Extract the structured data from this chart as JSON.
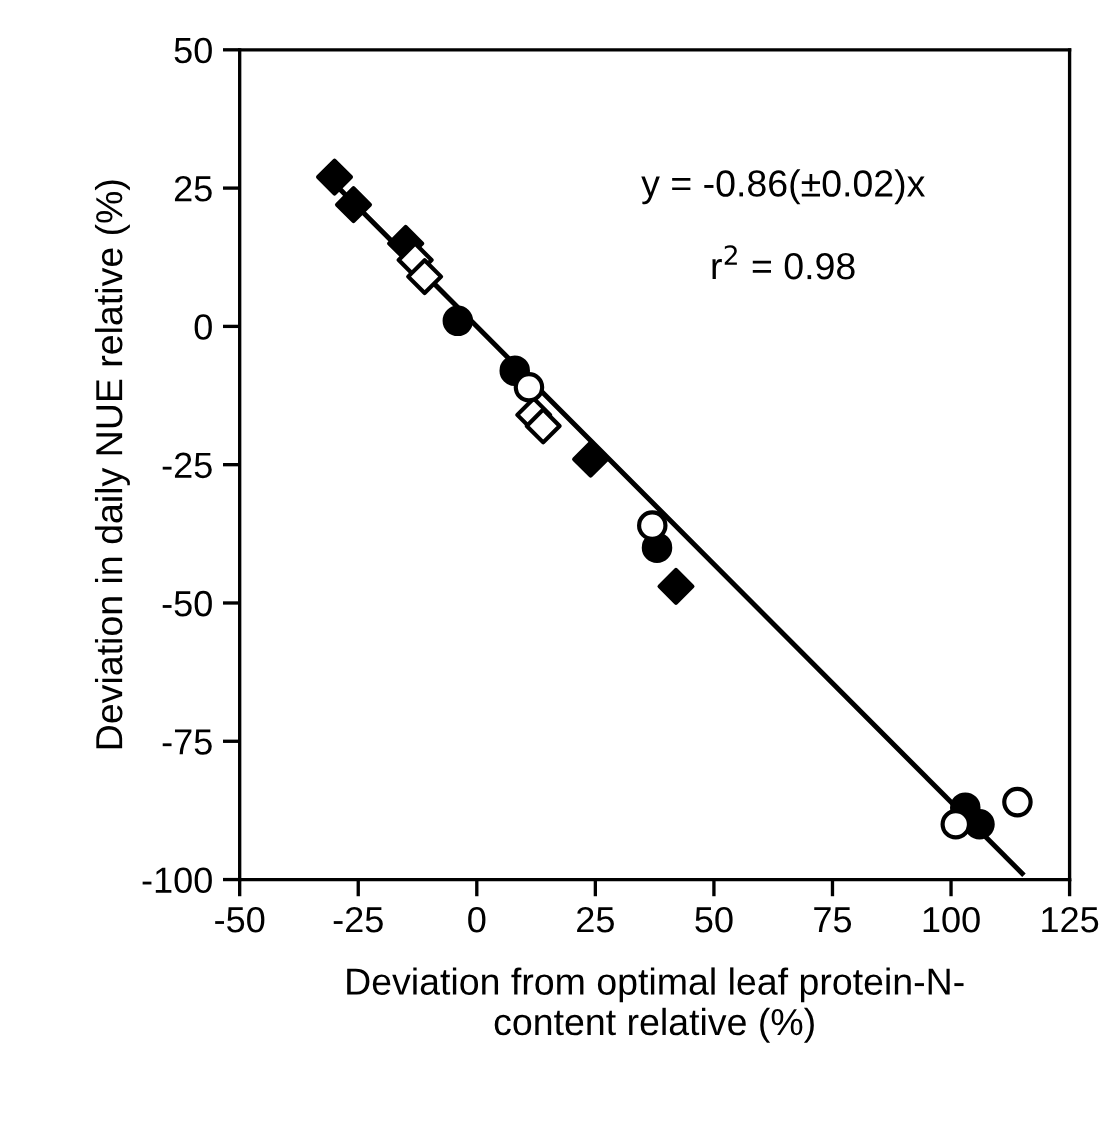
{
  "chart_data": {
    "type": "scatter",
    "xlabel": "Deviation from optimal leaf protein-N-\ncontent relative (%)",
    "ylabel": "Deviation in daily NUE relative (%)",
    "xlim": [
      -50,
      125
    ],
    "xticks": [
      -50,
      -25,
      0,
      25,
      50,
      75,
      100,
      125
    ],
    "ylim": [
      -100,
      50
    ],
    "yticks": [
      -100,
      -75,
      -50,
      -25,
      0,
      25,
      50
    ],
    "grid": false,
    "legend": false,
    "annotations": [
      "y = -0.86(±0.02)x",
      "r$^{2}$ = 0.98"
    ],
    "series": [
      {
        "type": "line",
        "marker": "none",
        "line_style": "solid",
        "color": "#000000",
        "x": [
          -30,
          115
        ],
        "values": [
          25.8,
          -98.9
        ]
      },
      {
        "marker": "diamond",
        "color": "#000000",
        "x": [
          -30,
          -26,
          -15,
          24,
          42
        ],
        "values": [
          27,
          22,
          15,
          -24,
          -47
        ]
      },
      {
        "marker": "diamond",
        "color": "#ffffff",
        "x": [
          -13,
          -11,
          12,
          14
        ],
        "values": [
          12,
          9,
          -16,
          -18
        ]
      },
      {
        "marker": "circle",
        "color": "#000000",
        "x": [
          -4,
          8,
          38,
          103,
          106
        ],
        "values": [
          1,
          -8,
          -40,
          -87,
          -90
        ]
      },
      {
        "marker": "circle",
        "color": "#ffffff",
        "x": [
          11,
          37,
          101,
          114
        ],
        "values": [
          -11,
          -36,
          -90,
          -86
        ]
      }
    ]
  }
}
